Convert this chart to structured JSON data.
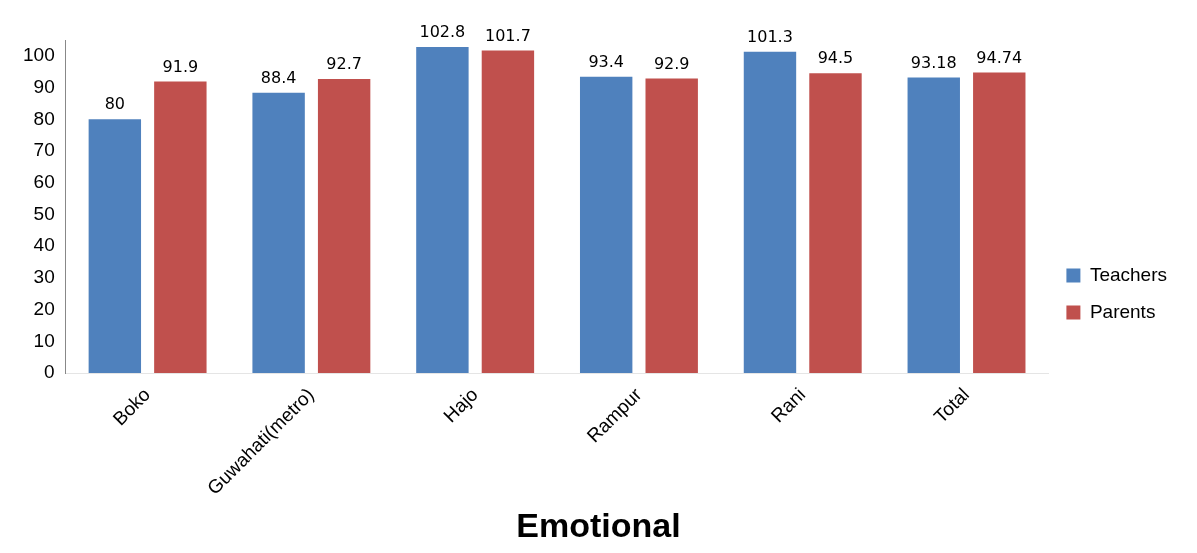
{
  "chart_data": {
    "type": "bar",
    "title": "Emotional",
    "categories": [
      "Boko",
      "Guwahati(metro)",
      "Hajo",
      "Rampur",
      "Rani",
      "Total"
    ],
    "series": [
      {
        "name": "Teachers",
        "color": "#4f81bd",
        "values": [
          80,
          88.4,
          102.8,
          93.4,
          101.3,
          93.18
        ]
      },
      {
        "name": "Parents",
        "color": "#c0504d",
        "values": [
          91.9,
          92.7,
          101.7,
          92.9,
          94.5,
          94.74
        ]
      }
    ],
    "ylim": [
      0,
      105
    ],
    "yticks": [
      0,
      10,
      20,
      30,
      40,
      50,
      60,
      70,
      80,
      90,
      100
    ],
    "grid": false,
    "legend": "right",
    "data_labels": true
  }
}
